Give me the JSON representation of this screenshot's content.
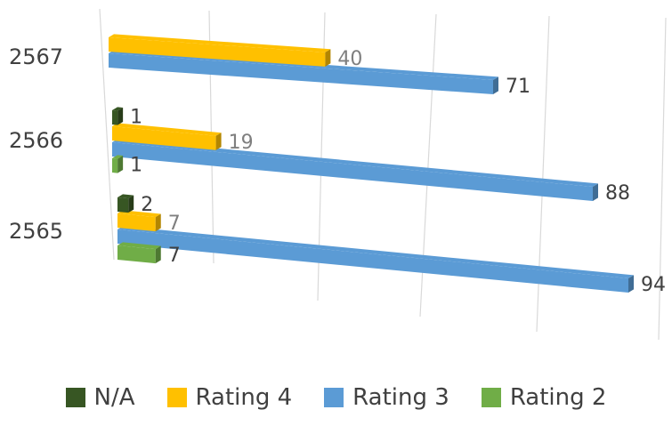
{
  "chart_data": {
    "type": "bar",
    "orientation": "horizontal",
    "style": "3d",
    "categories": [
      "2567",
      "2566",
      "2565"
    ],
    "series": [
      {
        "name": "N/A",
        "color": "#375623",
        "values": [
          null,
          1,
          2
        ]
      },
      {
        "name": "Rating 4",
        "color": "#FFC000",
        "values": [
          40,
          19,
          7
        ]
      },
      {
        "name": "Rating 3",
        "color": "#5B9BD5",
        "values": [
          71,
          88,
          94
        ]
      },
      {
        "name": "Rating 2",
        "color": "#70AD47",
        "values": [
          null,
          1,
          7
        ]
      }
    ],
    "grid": true,
    "legend": "bottom",
    "xlim": [
      0,
      100
    ]
  }
}
